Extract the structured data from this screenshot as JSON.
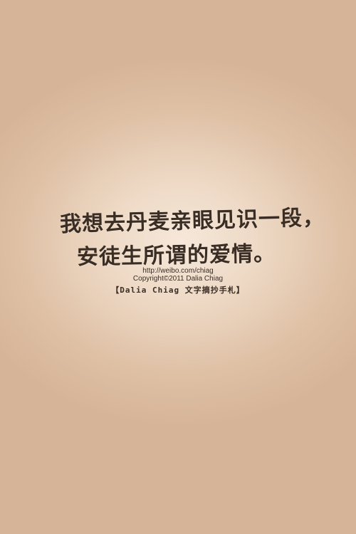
{
  "quote": {
    "line1": "我想去丹麦亲眼见识一段，",
    "line2": "安徒生所谓的爱情。"
  },
  "credits": {
    "url": "http://weibo.com/chiag",
    "copyright": "Copyright©2011 Dalia Chiag",
    "signature": "【Dalia Chiag 文字摘抄手札】"
  },
  "colors": {
    "background_center": "#f6e8da",
    "background_edge": "#d6b497",
    "text": "#3a2d24"
  }
}
